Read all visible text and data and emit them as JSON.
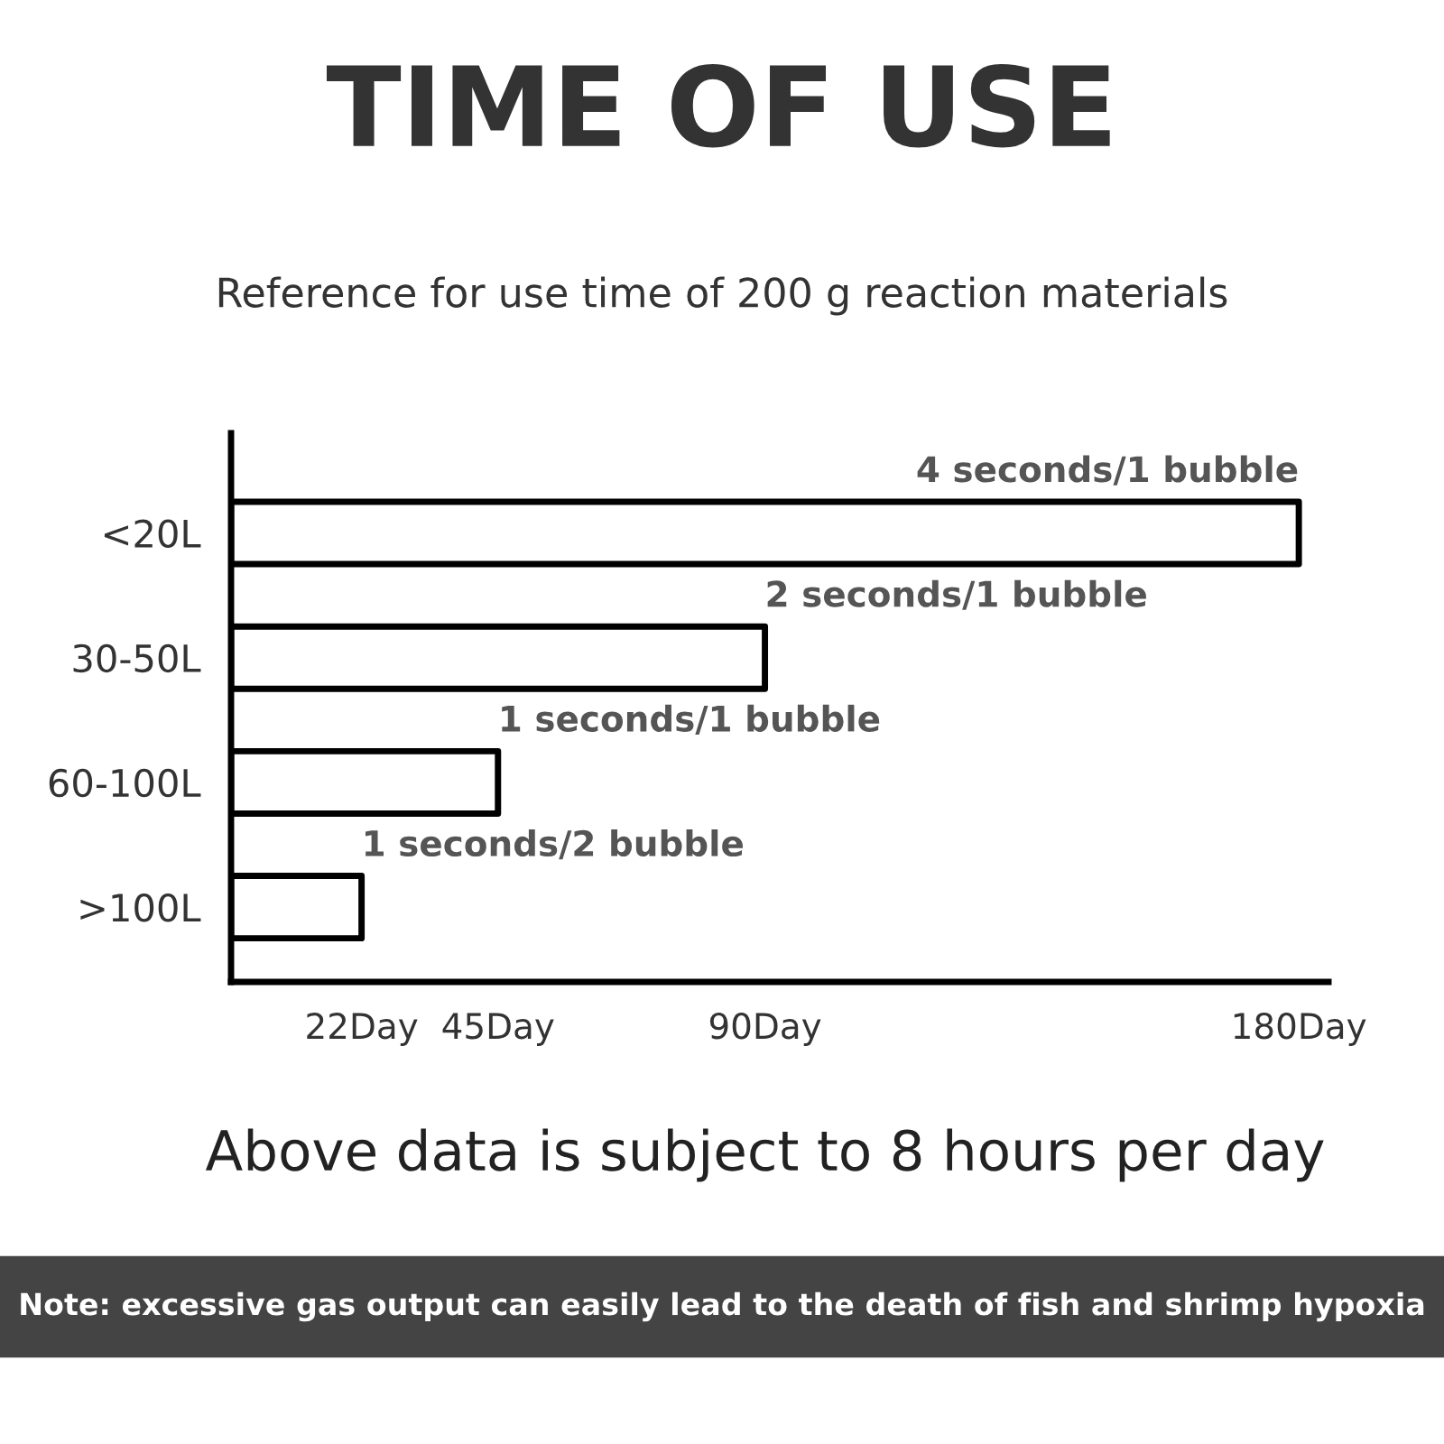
{
  "chart_data": {
    "type": "bar",
    "orientation": "horizontal",
    "title": "TIME OF USE",
    "subtitle": "Reference for use time of 200 g reaction materials",
    "categories": [
      "<20L",
      "30-50L",
      "60-100L",
      ">100L"
    ],
    "values": [
      180,
      90,
      45,
      22
    ],
    "color": "#000000",
    "xlim": [
      0,
      185
    ],
    "xticks": [
      {
        "value": 22,
        "label": "22Day"
      },
      {
        "value": 45,
        "label": "45Day"
      },
      {
        "value": 90,
        "label": "90Day"
      },
      {
        "value": 180,
        "label": "180Day"
      }
    ],
    "grid": false,
    "annotations": [
      {
        "text": "4 seconds/1 bubble",
        "x": 180,
        "y": "<20L"
      },
      {
        "text": "2 seconds/1 bubble",
        "x": 90,
        "y": "30-50L"
      },
      {
        "text": "1 seconds/1 bubble",
        "x": 45,
        "y": "60-100L"
      },
      {
        "text": "1 seconds/2 bubble",
        "x": 22,
        "y": ">100L"
      },
      "Above data is subject to 8 hours per day",
      "Note: excessive gas output can easily lead to the death of fish and shrimp hypoxia"
    ]
  }
}
